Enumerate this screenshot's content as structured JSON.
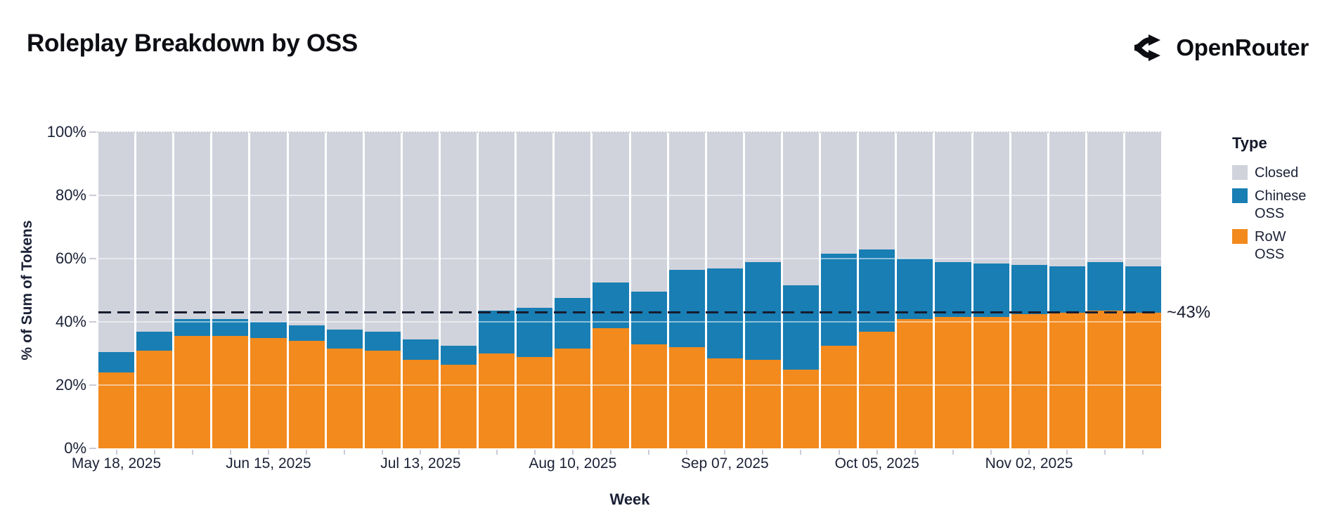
{
  "header": {
    "title": "Roleplay Breakdown by OSS",
    "brand": "OpenRouter"
  },
  "chart_data": {
    "type": "bar",
    "stacked": true,
    "units": "percent",
    "title": "Roleplay Breakdown by OSS",
    "xlabel": "Week",
    "ylabel": "% of Sum of Tokens",
    "ylim": [
      0,
      100
    ],
    "y_tick_values": [
      0,
      20,
      40,
      60,
      80,
      100
    ],
    "y_tick_labels": [
      "0%",
      "20%",
      "40%",
      "60%",
      "80%",
      "100%"
    ],
    "x_tick_indices": [
      0,
      4,
      8,
      12,
      16,
      20,
      24
    ],
    "x_tick_labels": [
      "May 18, 2025",
      "Jun 15, 2025",
      "Jul 13, 2025",
      "Aug 10, 2025",
      "Sep 07, 2025",
      "Oct 05, 2025",
      "Nov 02, 2025"
    ],
    "categories": [
      "May 18, 2025",
      "May 25, 2025",
      "Jun 01, 2025",
      "Jun 08, 2025",
      "Jun 15, 2025",
      "Jun 22, 2025",
      "Jun 29, 2025",
      "Jul 06, 2025",
      "Jul 13, 2025",
      "Jul 20, 2025",
      "Jul 27, 2025",
      "Aug 03, 2025",
      "Aug 10, 2025",
      "Aug 17, 2025",
      "Aug 24, 2025",
      "Aug 31, 2025",
      "Sep 07, 2025",
      "Sep 14, 2025",
      "Sep 21, 2025",
      "Sep 28, 2025",
      "Oct 05, 2025",
      "Oct 12, 2025",
      "Oct 19, 2025",
      "Oct 26, 2025",
      "Nov 02, 2025",
      "Nov 09, 2025",
      "Nov 16, 2025",
      "Nov 23, 2025"
    ],
    "series": [
      {
        "name": "RoW OSS",
        "color": "#f28a1d",
        "values": [
          24,
          31,
          35.5,
          35.5,
          35,
          34,
          31.5,
          31,
          28,
          26.5,
          30,
          29,
          31.5,
          38,
          33,
          32,
          28.5,
          28,
          25,
          32.5,
          37,
          41,
          41.5,
          41.5,
          42.5,
          43,
          43.5,
          43
        ]
      },
      {
        "name": "Chinese OSS",
        "color": "#187eb4",
        "values": [
          6.5,
          6,
          5.5,
          5.5,
          5,
          5,
          6,
          6,
          6.5,
          6,
          13.5,
          15.5,
          16,
          14.5,
          16.5,
          24.5,
          28.5,
          31,
          26.5,
          29,
          26,
          19,
          17.5,
          17,
          15.5,
          14.5,
          15.5,
          14.5
        ]
      },
      {
        "name": "Closed",
        "color": "#d0d3dc",
        "values": [
          69.5,
          63,
          59,
          59,
          60,
          61,
          62.5,
          63,
          65.5,
          67.5,
          56.5,
          55.5,
          52.5,
          47.5,
          50.5,
          43.5,
          43,
          41,
          48.5,
          38.5,
          37,
          40,
          41,
          41.5,
          42,
          42.5,
          41,
          42.5
        ]
      }
    ],
    "reference_line": {
      "value": 43.1,
      "label": "~43%",
      "style": "dashed",
      "color": "#171c2f"
    },
    "legend": {
      "title": "Type",
      "position": "right",
      "entries": [
        "Closed",
        "Chinese OSS",
        "RoW OSS"
      ]
    },
    "grid": "horizontal-white-over-bars"
  }
}
